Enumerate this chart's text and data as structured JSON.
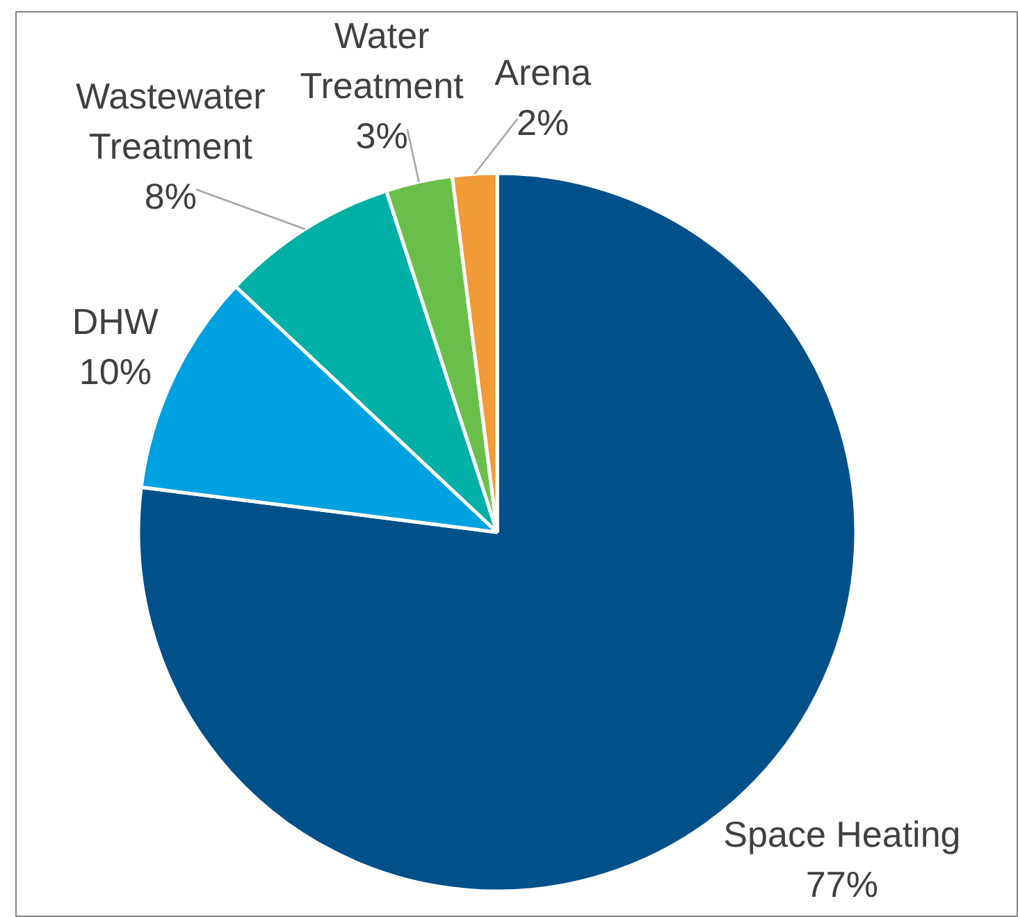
{
  "chart_data": {
    "type": "pie",
    "categories": [
      "Space Heating",
      "DHW",
      "Wastewater Treatment",
      "Water Treatment",
      "Arena"
    ],
    "values": [
      77,
      10,
      8,
      3,
      2
    ],
    "value_labels": [
      "77%",
      "10%",
      "8%",
      "3%",
      "2%"
    ],
    "colors": [
      "#00508a",
      "#00a1e0",
      "#00b0a6",
      "#6abf4b",
      "#f19a38"
    ]
  }
}
